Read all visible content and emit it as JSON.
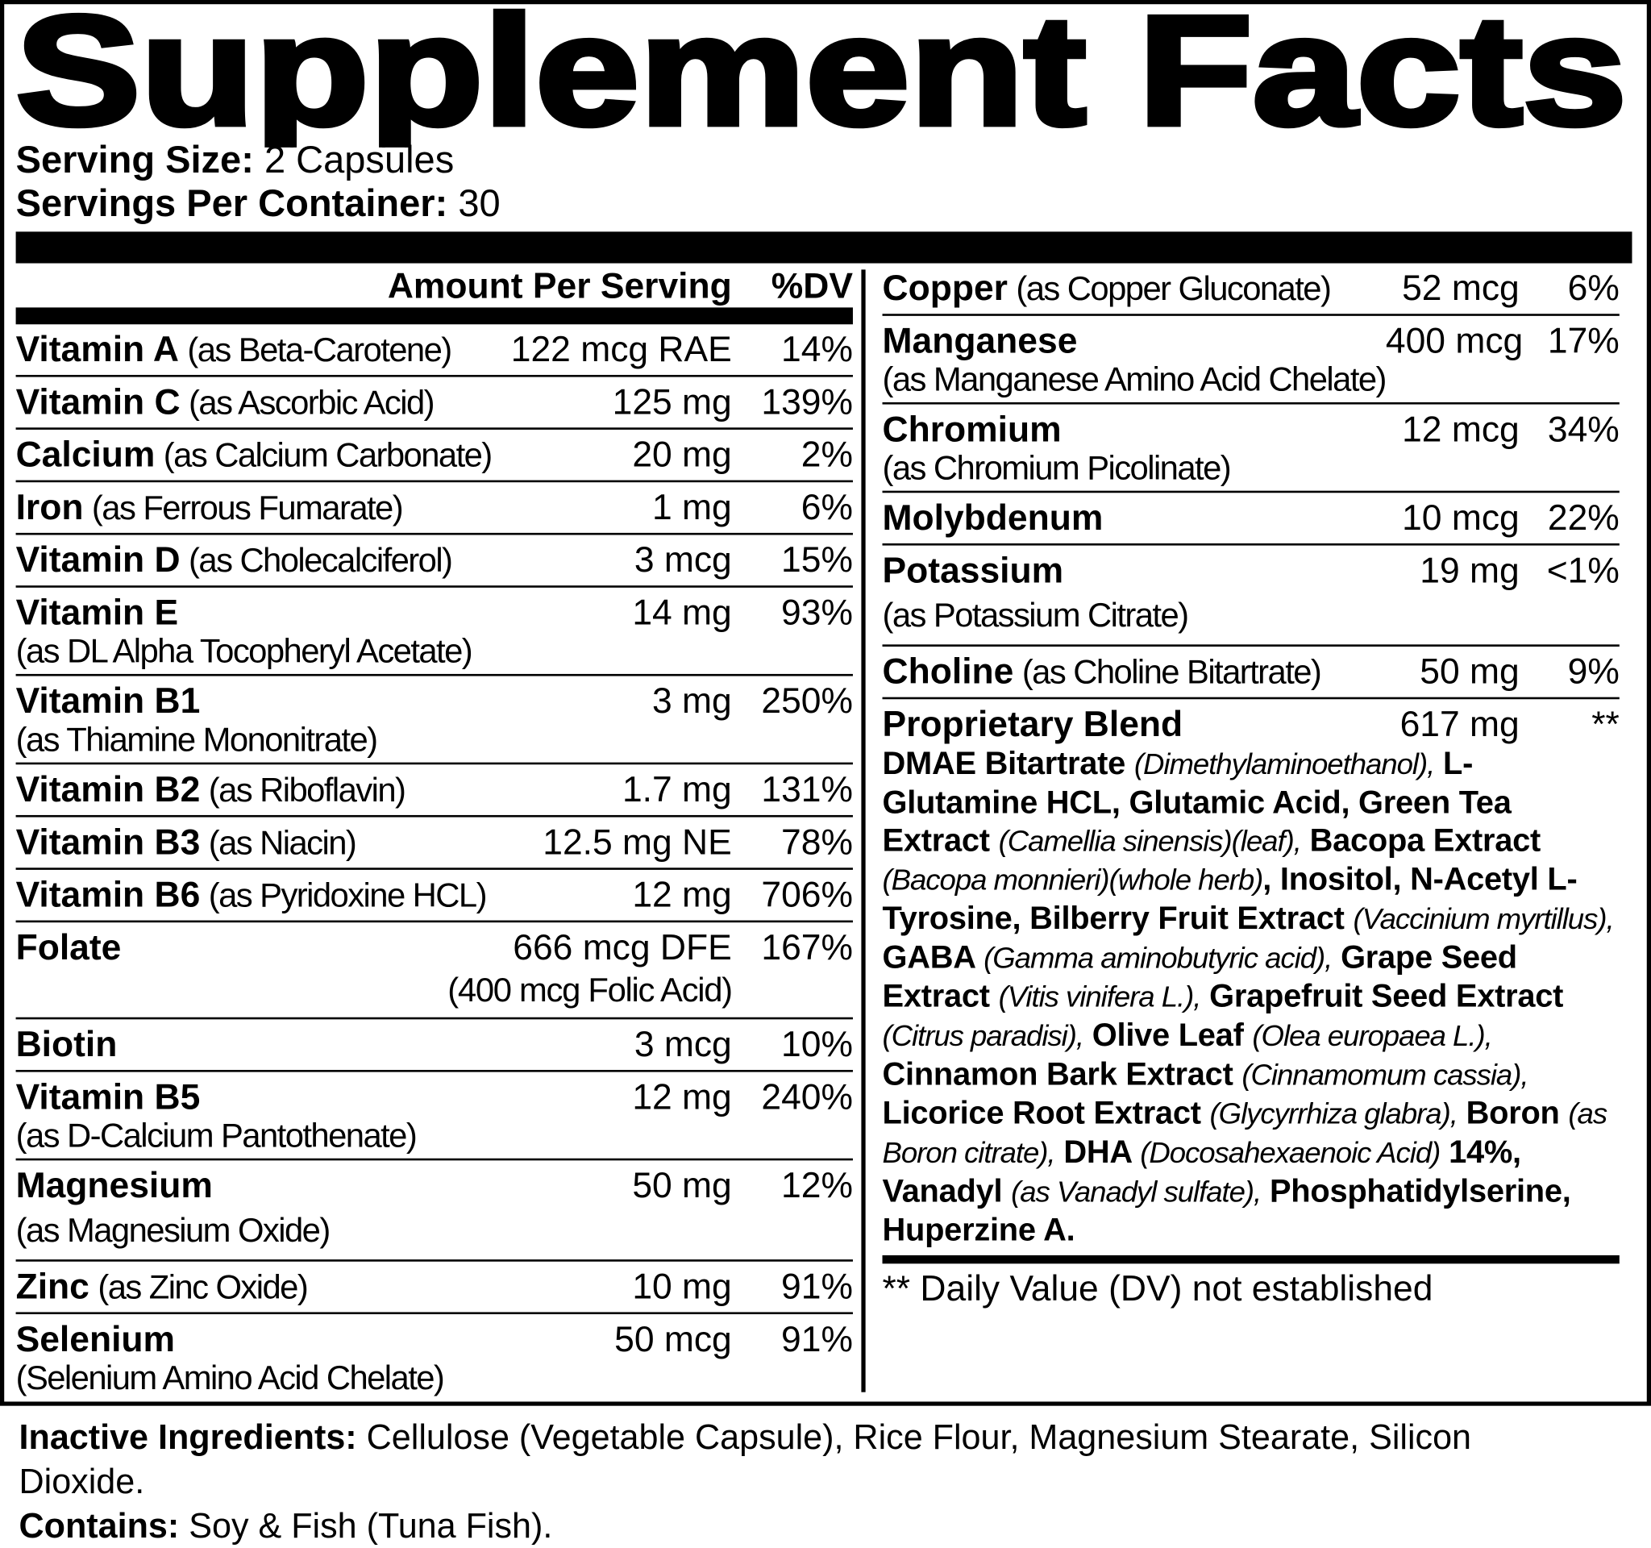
{
  "title": "Supplement Facts",
  "serving": {
    "size_label": "Serving Size:",
    "size": "2 Capsules",
    "per_container_label": "Servings Per Container:",
    "per_container": "30"
  },
  "header": {
    "amount": "Amount Per Serving",
    "dv": "%DV"
  },
  "left_rows": [
    {
      "name": "Vitamin A",
      "source": "(as Beta-Carotene)",
      "amount": "122 mcg RAE",
      "dv": "14%"
    },
    {
      "name": "Vitamin C",
      "source": "(as Ascorbic Acid)",
      "amount": "125 mg",
      "dv": "139%"
    },
    {
      "name": "Calcium",
      "source": "(as Calcium Carbonate)",
      "amount": "20 mg",
      "dv": "2%"
    },
    {
      "name": "Iron",
      "source": "(as Ferrous Fumarate)",
      "amount": "1 mg",
      "dv": "6%"
    },
    {
      "name": "Vitamin D",
      "source": "(as Cholecalciferol)",
      "amount": "3 mcg",
      "dv": "15%"
    },
    {
      "name": "Vitamin E",
      "source": "(as DL Alpha Tocopheryl Acetate)",
      "amount": "14 mg",
      "dv": "93%"
    },
    {
      "name": "Vitamin B1",
      "source": "(as Thiamine Mononitrate)",
      "amount": "3 mg",
      "dv": "250%"
    },
    {
      "name": "Vitamin B2",
      "source": "(as Riboflavin)",
      "amount": "1.7 mg",
      "dv": "131%"
    },
    {
      "name": "Vitamin B3",
      "source": "(as Niacin)",
      "amount": "12.5 mg NE",
      "dv": "78%"
    },
    {
      "name": "Vitamin B6",
      "source": "(as Pyridoxine HCL)",
      "amount": "12 mg",
      "dv": "706%"
    },
    {
      "name": "Folate",
      "amount": "666 mcg DFE",
      "sub": "(400 mcg Folic Acid)",
      "dv": "167%"
    },
    {
      "name": "Biotin",
      "amount": "3 mcg",
      "dv": "10%"
    },
    {
      "name": "Vitamin B5",
      "source": "(as D-Calcium Pantothenate)",
      "amount": "12 mg",
      "dv": "240%"
    },
    {
      "name": "Magnesium",
      "source": "(as Magnesium Oxide)",
      "amount": "50 mg",
      "dv": "12%"
    },
    {
      "name": "Zinc",
      "source": "(as Zinc Oxide)",
      "amount": "10 mg",
      "dv": "91%"
    },
    {
      "name": "Selenium",
      "source": "(Selenium Amino Acid Chelate)",
      "amount": "50 mcg",
      "dv": "91%"
    }
  ],
  "right_rows": [
    {
      "name": "Copper",
      "source": "(as Copper Gluconate)",
      "amount": "52 mcg",
      "dv": "6%"
    },
    {
      "name": "Manganese",
      "source": "(as Manganese Amino Acid Chelate)",
      "amount": "400 mcg",
      "dv": "17%"
    },
    {
      "name": "Chromium",
      "source": "(as Chromium Picolinate)",
      "amount": "12 mcg",
      "dv": "34%"
    },
    {
      "name": "Molybdenum",
      "amount": "10 mcg",
      "dv": "22%"
    },
    {
      "name": "Potassium",
      "source": "(as Potassium Citrate)",
      "amount": "19 mg",
      "dv": "<1%"
    },
    {
      "name": "Choline",
      "source": "(as Choline Bitartrate)",
      "amount": "50 mg",
      "dv": "9%"
    }
  ],
  "blend": {
    "name": "Proprietary Blend",
    "amount": "617 mg",
    "dv": "**",
    "ingredients": [
      {
        "text": "DMAE Bitartrate ",
        "style": "bold"
      },
      {
        "text": "(Dimethylaminoethanol),",
        "style": "italic"
      },
      {
        "text": " L-Glutamine HCL, Glutamic Acid, Green Tea Extract ",
        "style": "bold"
      },
      {
        "text": "(Camellia sinensis)(leaf),",
        "style": "italic"
      },
      {
        "text": " Bacopa Extract ",
        "style": "bold"
      },
      {
        "text": "(Bacopa monnieri)(whole herb)",
        "style": "italic"
      },
      {
        "text": ", Inositol, N-Acetyl L-Tyrosine, Bilberry Fruit Extract ",
        "style": "bold"
      },
      {
        "text": "(Vaccinium myrtillus),",
        "style": "italic"
      },
      {
        "text": " GABA ",
        "style": "bold"
      },
      {
        "text": "(Gamma aminobutyric acid),",
        "style": "italic"
      },
      {
        "text": " Grape Seed Extract ",
        "style": "bold"
      },
      {
        "text": "(Vitis vinifera L.),",
        "style": "italic"
      },
      {
        "text": " Grapefruit Seed Extract ",
        "style": "bold"
      },
      {
        "text": "(Citrus paradisi),",
        "style": "italic"
      },
      {
        "text": " Olive Leaf ",
        "style": "bold"
      },
      {
        "text": "(Olea europaea L.),",
        "style": "italic"
      },
      {
        "text": " Cinnamon Bark Extract ",
        "style": "bold"
      },
      {
        "text": "(Cinnamomum cassia),",
        "style": "italic"
      },
      {
        "text": " Licorice Root Extract ",
        "style": "bold"
      },
      {
        "text": "(Glycyrrhiza glabra),",
        "style": "italic"
      },
      {
        "text": " Boron ",
        "style": "bold"
      },
      {
        "text": "(as Boron citrate),",
        "style": "italic"
      },
      {
        "text": " DHA ",
        "style": "bold"
      },
      {
        "text": "(Docosahexaenoic Acid)",
        "style": "italic"
      },
      {
        "text": " 14%, Vanadyl ",
        "style": "bold"
      },
      {
        "text": "(as Vanadyl sulfate),",
        "style": "italic"
      },
      {
        "text": " Phosphatidylserine, Huperzine A.",
        "style": "bold"
      }
    ]
  },
  "footnote": "** Daily Value (DV) not established",
  "inactive": {
    "label": "Inactive Ingredients:",
    "text": "Cellulose (Vegetable Capsule), Rice Flour, Magnesium Stearate, Silicon Dioxide."
  },
  "contains": {
    "label": "Contains:",
    "text": "Soy & Fish (Tuna Fish)."
  }
}
